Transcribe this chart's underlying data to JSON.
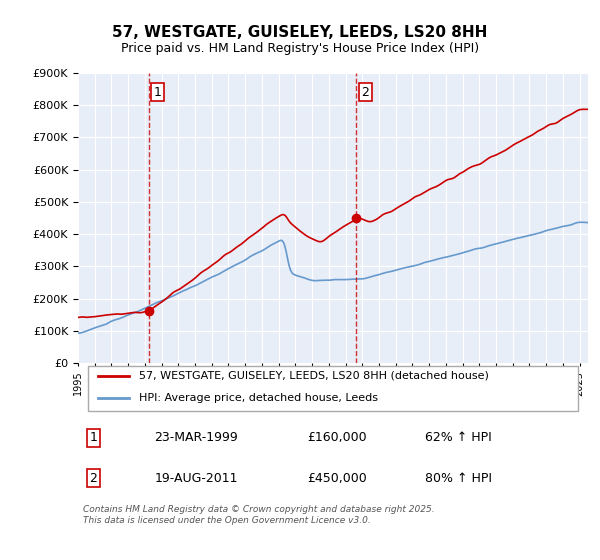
{
  "title": "57, WESTGATE, GUISELEY, LEEDS, LS20 8HH",
  "subtitle": "Price paid vs. HM Land Registry's House Price Index (HPI)",
  "legend_line1": "57, WESTGATE, GUISELEY, LEEDS, LS20 8HH (detached house)",
  "legend_line2": "HPI: Average price, detached house, Leeds",
  "annotation1_label": "1",
  "annotation1_date": "23-MAR-1999",
  "annotation1_price": "£160,000",
  "annotation1_hpi": "62% ↑ HPI",
  "annotation2_label": "2",
  "annotation2_date": "19-AUG-2011",
  "annotation2_price": "£450,000",
  "annotation2_hpi": "80% ↑ HPI",
  "footnote": "Contains HM Land Registry data © Crown copyright and database right 2025.\nThis data is licensed under the Open Government Licence v3.0.",
  "red_color": "#cc0000",
  "blue_color": "#6699cc",
  "background_color": "#e8eef8",
  "plot_bg_color": "#ffffff",
  "marker1_date": 1999.23,
  "marker1_value": 160000,
  "marker2_date": 2011.64,
  "marker2_value": 450000,
  "vline1_x": 1999.23,
  "vline2_x": 2011.64,
  "ylim": [
    0,
    900000
  ],
  "xlim": [
    1995,
    2025.5
  ]
}
